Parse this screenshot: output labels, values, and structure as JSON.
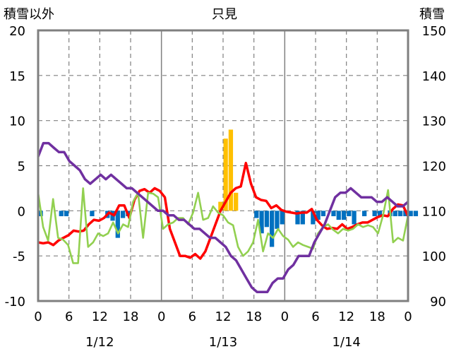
{
  "chart_data": {
    "type": "line",
    "title": "只見",
    "left_axis_title": "積雪以外",
    "right_axis_title": "積雪",
    "ylim_left": [
      -10,
      20
    ],
    "ylim_right": [
      90,
      150
    ],
    "yticks_left": [
      "20",
      "15",
      "10",
      "5",
      "0",
      "-5",
      "-10"
    ],
    "yticks_right": [
      "150",
      "140",
      "130",
      "120",
      "110",
      "100",
      "90"
    ],
    "xtick_labels": [
      "0",
      "6",
      "12",
      "18",
      "0",
      "6",
      "12",
      "18",
      "0",
      "6",
      "12",
      "18",
      "0"
    ],
    "date_labels": [
      "1/12",
      "1/13",
      "1/14"
    ],
    "grid": true,
    "colors": {
      "temperature": "#ff0000",
      "green_line": "#92d050",
      "snow_depth": "#7030a0",
      "bars_positive": "#ffc000",
      "bars_negative": "#0070c0",
      "grid": "#808080",
      "frame": "#7f7f7f"
    },
    "series": [
      {
        "axis": "left",
        "color": "#ff0000",
        "values": [
          -3.5,
          -3.6,
          -3.5,
          -3.8,
          -3.3,
          -3.0,
          -2.7,
          -2.2,
          -2.3,
          -2.2,
          -1.5,
          -1.0,
          -1.1,
          -0.8,
          -0.2,
          -0.5,
          0.6,
          0.6,
          -0.8,
          1.2,
          2.2,
          2.4,
          2.0,
          2.5,
          2.2,
          1.5,
          -2.0,
          -3.5,
          -5.0,
          -5.0,
          -5.2,
          -4.8,
          -5.3,
          -4.5,
          -3.0,
          -1.5,
          0.0,
          1.0,
          2.0,
          2.5,
          2.7,
          5.3,
          3.0,
          1.5,
          1.2,
          1.1,
          0.3,
          0.6,
          0.1,
          -0.1,
          -0.2,
          -0.3,
          -0.2,
          -0.2,
          0.2,
          -1.0,
          -1.6,
          -2.0,
          -1.9,
          -2.0,
          -1.5,
          -2.0,
          -1.8,
          -1.5,
          -1.3,
          -1.3,
          -1.0,
          -0.7,
          -0.5,
          -0.6,
          0.2,
          0.7,
          0.6,
          -0.6
        ]
      },
      {
        "axis": "left",
        "color": "#92d050",
        "values": [
          2.0,
          -1.8,
          -3.3,
          1.3,
          -3.0,
          -3.2,
          -3.8,
          -5.8,
          -5.8,
          2.5,
          -4.0,
          -3.5,
          -2.5,
          -2.8,
          -2.5,
          -1.3,
          -2.5,
          -1.5,
          -1.8,
          1.0,
          2.0,
          -3.0,
          2.0,
          1.9,
          1.5,
          -2.0,
          -1.5,
          -1.3,
          -0.8,
          -0.8,
          -1.5,
          -0.2,
          2.0,
          -1.0,
          -0.8,
          0.5,
          -0.2,
          -0.5,
          -1.3,
          -1.6,
          -4.0,
          -5.0,
          -4.5,
          -3.5,
          -1.0,
          -4.5,
          -2.5,
          -3.0,
          -2.0,
          -2.8,
          -3.2,
          -4.0,
          -3.5,
          -3.8,
          -4.0,
          -4.2,
          -2.5,
          -1.8,
          -1.5,
          -2.1,
          -2.5,
          -2.0,
          -2.2,
          -2.0,
          -1.5,
          -1.8,
          -1.6,
          -1.8,
          -2.5,
          -0.5,
          2.3,
          -3.5,
          -3.0,
          -3.3,
          -0.5
        ]
      },
      {
        "axis": "right",
        "color": "#7030a0",
        "values": [
          122,
          125,
          125,
          124,
          123,
          123,
          121,
          120,
          119,
          117,
          116,
          117,
          118,
          117,
          118,
          117,
          116,
          115,
          115,
          114,
          113,
          112,
          111,
          110,
          110,
          109,
          109,
          108,
          108,
          107,
          106,
          106,
          105,
          104,
          104,
          103,
          102,
          100,
          99,
          97,
          95,
          93,
          92,
          92,
          92,
          94,
          95,
          95,
          97,
          98,
          100,
          100,
          100,
          103,
          105,
          107,
          110,
          113,
          114,
          114,
          115,
          114,
          113,
          113,
          113,
          112,
          112,
          113,
          112,
          111,
          111,
          112
        ]
      }
    ],
    "bars": {
      "axis": "left",
      "values": [
        -0.6,
        0,
        0,
        0,
        -0.6,
        -0.6,
        0,
        0,
        0,
        0,
        -0.6,
        0,
        0,
        -0.8,
        -1.1,
        -3.0,
        -0.8,
        -0.6,
        0,
        0,
        0,
        0,
        0,
        0,
        0,
        0,
        0,
        0,
        0,
        0,
        0,
        0,
        0,
        0,
        0,
        1.0,
        8.0,
        9.0,
        2.0,
        0,
        0,
        0,
        -0.8,
        -2.5,
        -1.8,
        -4.0,
        -2.0,
        -1.5,
        0,
        0,
        -1.5,
        -1.5,
        0,
        -1.5,
        -1.0,
        -0.6,
        0,
        -0.6,
        -1.0,
        -1.0,
        -0.6,
        -1.5,
        0,
        -0.6,
        0,
        -0.6,
        -0.6,
        0,
        -0.6,
        -0.6,
        -0.6,
        -0.6,
        -0.6,
        -0.6
      ]
    }
  }
}
